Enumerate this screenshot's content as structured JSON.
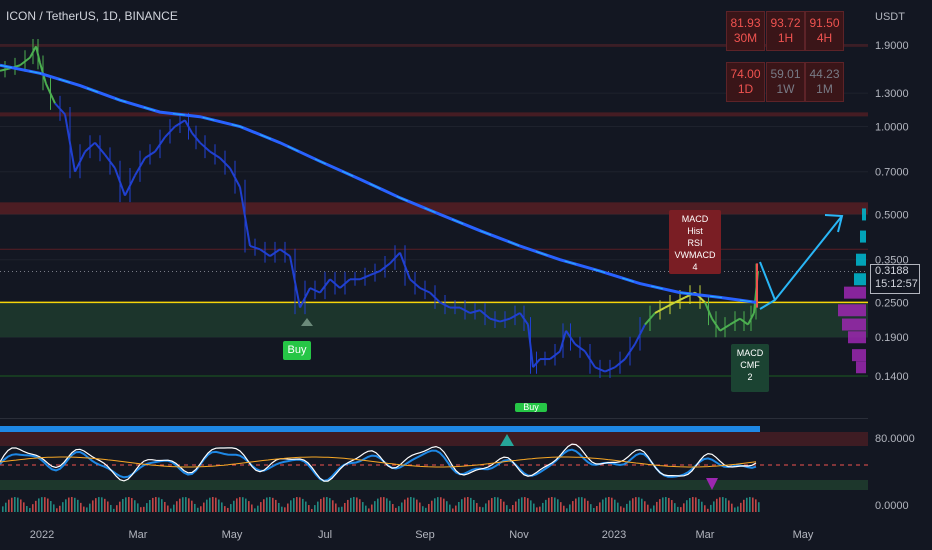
{
  "header": {
    "title": "ICON / TetherUS, 1D, BINANCE"
  },
  "rsi_table": [
    {
      "value": "81.93",
      "tf": "30M",
      "color": "#ef5350"
    },
    {
      "value": "93.72",
      "tf": "1H",
      "color": "#ef5350"
    },
    {
      "value": "91.50",
      "tf": "4H",
      "color": "#ef5350"
    },
    {
      "value": "74.00",
      "tf": "1D",
      "color": "#ef5350"
    },
    {
      "value": "59.01",
      "tf": "1W",
      "color": "#787b86"
    },
    {
      "value": "44.23",
      "tf": "1M",
      "color": "#787b86"
    }
  ],
  "labels": {
    "buy": "Buy",
    "buy2": "Buy",
    "sell_signal": [
      "MACD",
      "Hist",
      "RSI",
      "VWMACD",
      "4"
    ],
    "buy_signal": [
      "MACD",
      "CMF",
      "2"
    ]
  },
  "price_tag": {
    "price": "0.3188",
    "countdown": "15:12:57"
  },
  "chart_data": {
    "type": "line",
    "x_labels": [
      "2022",
      "Mar",
      "May",
      "Jul",
      "Sep",
      "Nov",
      "2023",
      "Mar",
      "May"
    ],
    "y_axis": {
      "currency": "USDT",
      "scale": "log",
      "ticks": [
        "1.9000",
        "1.3000",
        "1.0000",
        "0.7000",
        "0.5000",
        "0.3500",
        "0.2500",
        "0.1900",
        "0.1400"
      ]
    },
    "oscillator_ticks": [
      "80.0000",
      "0.0000"
    ],
    "series": [
      {
        "values": [
          [
            0,
            1.55
          ],
          [
            10,
            1.58
          ],
          [
            20,
            1.62
          ],
          [
            30,
            1.72
          ],
          [
            36,
            1.88
          ],
          [
            40,
            1.65
          ],
          [
            46,
            1.4
          ],
          [
            55,
            1.2
          ],
          [
            65,
            1.1
          ],
          [
            75,
            0.7
          ],
          [
            85,
            0.82
          ],
          [
            95,
            0.88
          ],
          [
            105,
            0.8
          ],
          [
            115,
            0.72
          ],
          [
            125,
            0.58
          ],
          [
            135,
            0.68
          ],
          [
            145,
            0.78
          ],
          [
            155,
            0.82
          ],
          [
            165,
            0.92
          ],
          [
            175,
            1.0
          ],
          [
            185,
            1.05
          ],
          [
            192,
            0.95
          ],
          [
            200,
            0.88
          ],
          [
            210,
            0.82
          ],
          [
            220,
            0.78
          ],
          [
            230,
            0.72
          ],
          [
            240,
            0.62
          ],
          [
            250,
            0.39
          ],
          [
            260,
            0.38
          ],
          [
            270,
            0.36
          ],
          [
            280,
            0.38
          ],
          [
            290,
            0.36
          ],
          [
            300,
            0.24
          ],
          [
            310,
            0.28
          ],
          [
            320,
            0.27
          ],
          [
            330,
            0.3
          ],
          [
            340,
            0.28
          ],
          [
            350,
            0.3
          ],
          [
            360,
            0.3
          ],
          [
            370,
            0.31
          ],
          [
            380,
            0.32
          ],
          [
            390,
            0.34
          ],
          [
            400,
            0.37
          ],
          [
            410,
            0.3
          ],
          [
            420,
            0.28
          ],
          [
            430,
            0.27
          ],
          [
            440,
            0.25
          ],
          [
            450,
            0.24
          ],
          [
            460,
            0.24
          ],
          [
            470,
            0.23
          ],
          [
            480,
            0.235
          ],
          [
            490,
            0.22
          ],
          [
            500,
            0.215
          ],
          [
            510,
            0.22
          ],
          [
            520,
            0.23
          ],
          [
            528,
            0.21
          ],
          [
            533,
            0.15
          ],
          [
            540,
            0.16
          ],
          [
            550,
            0.16
          ],
          [
            560,
            0.17
          ],
          [
            566,
            0.2
          ],
          [
            575,
            0.18
          ],
          [
            585,
            0.17
          ],
          [
            595,
            0.15
          ],
          [
            605,
            0.145
          ],
          [
            615,
            0.15
          ],
          [
            625,
            0.16
          ],
          [
            635,
            0.18
          ],
          [
            645,
            0.21
          ],
          [
            655,
            0.23
          ],
          [
            665,
            0.24
          ],
          [
            675,
            0.25
          ],
          [
            685,
            0.26
          ],
          [
            695,
            0.27
          ],
          [
            705,
            0.25
          ],
          [
            712,
            0.22
          ],
          [
            720,
            0.2
          ],
          [
            730,
            0.21
          ],
          [
            740,
            0.22
          ],
          [
            748,
            0.21
          ],
          [
            754,
            0.23
          ],
          [
            758,
            0.32
          ]
        ]
      }
    ],
    "legend": "none",
    "grid": true,
    "colors": {
      "background": "#131722",
      "ma_line": "#2962ff",
      "support": "#f5d60a",
      "zone": "#1f3b2e",
      "resistance": "#5b1f24",
      "projection": "#29b6f6"
    }
  }
}
